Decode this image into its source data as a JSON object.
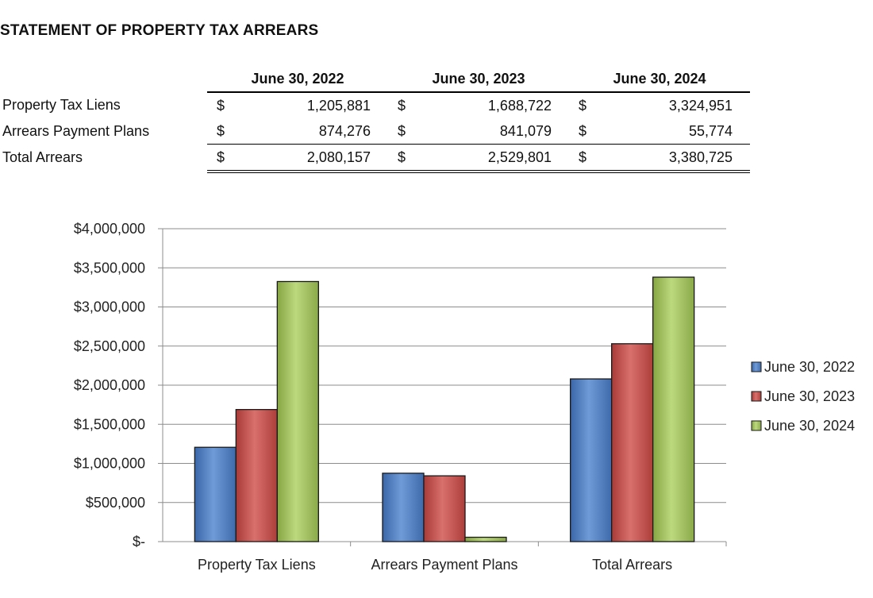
{
  "title": "STATEMENT OF PROPERTY TAX ARREARS",
  "table": {
    "columns": [
      "June 30, 2022",
      "June 30, 2023",
      "June 30, 2024"
    ],
    "currency": "$",
    "rows": [
      {
        "label": "Property Tax Liens",
        "values": [
          "1,205,881",
          "1,688,722",
          "3,324,951"
        ]
      },
      {
        "label": "Arrears Payment Plans",
        "values": [
          "874,276",
          "841,079",
          "55,774"
        ]
      },
      {
        "label": "Total Arrears",
        "values": [
          "2,080,157",
          "2,529,801",
          "3,380,725"
        ]
      }
    ]
  },
  "chart_data": {
    "type": "bar",
    "title": "",
    "xlabel": "",
    "ylabel": "",
    "categories": [
      "Property Tax Liens",
      "Arrears Payment Plans",
      "Total Arrears"
    ],
    "series": [
      {
        "name": "June 30, 2022",
        "values": [
          1205881,
          874276,
          2080157
        ],
        "color": "#4f81bd"
      },
      {
        "name": "June 30, 2023",
        "values": [
          1688722,
          841079,
          2529801
        ],
        "color": "#c0504d"
      },
      {
        "name": "June 30, 2024",
        "values": [
          3324951,
          55774,
          3380725
        ],
        "color": "#9bbb59"
      }
    ],
    "ylim": [
      0,
      4000000
    ],
    "yticks": [
      0,
      500000,
      1000000,
      1500000,
      2000000,
      2500000,
      3000000,
      3500000,
      4000000
    ],
    "ytick_labels": [
      "$-",
      "$500,000",
      "$1,000,000",
      "$1,500,000",
      "$2,000,000",
      "$2,500,000",
      "$3,000,000",
      "$3,500,000",
      "$4,000,000"
    ],
    "grid": true,
    "legend": "right"
  }
}
